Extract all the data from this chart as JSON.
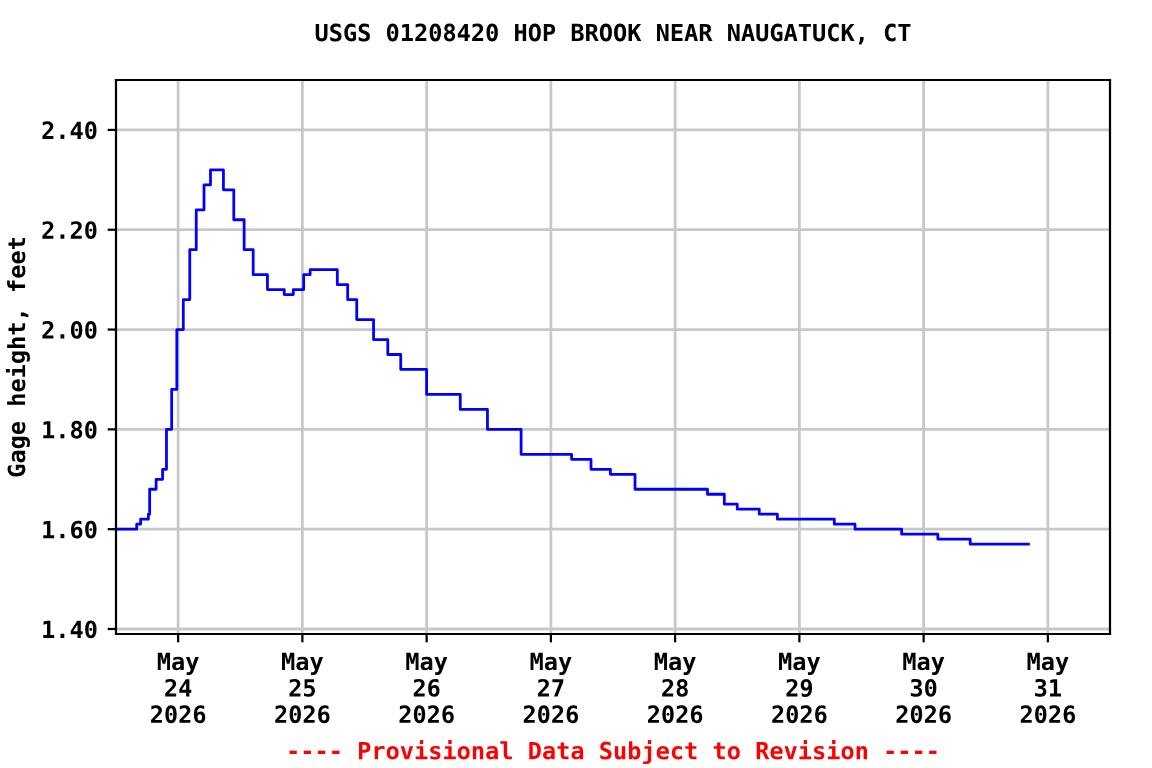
{
  "chart_data": {
    "type": "step",
    "title": "USGS 01208420 HOP BROOK NEAR NAUGATUCK, CT",
    "ylabel": "Gage height, feet",
    "annotations": [
      "---- Provisional Data Subject to Revision ----"
    ],
    "x": [
      "2026-05-23T12:00",
      "2026-05-23T15:15",
      "2026-05-23T16:00",
      "2026-05-23T16:45",
      "2026-05-23T18:15",
      "2026-05-23T18:30",
      "2026-05-23T19:45",
      "2026-05-23T21:00",
      "2026-05-23T21:45",
      "2026-05-23T22:45",
      "2026-05-23T23:45",
      "2026-05-24T01:00",
      "2026-05-24T02:15",
      "2026-05-24T03:30",
      "2026-05-24T05:00",
      "2026-05-24T06:15",
      "2026-05-24T07:30",
      "2026-05-24T08:45",
      "2026-05-24T10:45",
      "2026-05-24T12:45",
      "2026-05-24T14:30",
      "2026-05-24T17:15",
      "2026-05-24T19:45",
      "2026-05-24T20:30",
      "2026-05-24T22:15",
      "2026-05-25T00:15",
      "2026-05-25T01:30",
      "2026-05-25T04:15",
      "2026-05-25T06:45",
      "2026-05-25T08:45",
      "2026-05-25T10:30",
      "2026-05-25T13:45",
      "2026-05-25T16:30",
      "2026-05-25T19:00",
      "2026-05-26T00:00",
      "2026-05-26T06:30",
      "2026-05-26T11:45",
      "2026-05-26T18:15",
      "2026-05-27T04:00",
      "2026-05-27T07:45",
      "2026-05-27T11:30",
      "2026-05-27T16:15",
      "2026-05-28T03:45",
      "2026-05-28T06:15",
      "2026-05-28T09:30",
      "2026-05-28T12:00",
      "2026-05-28T16:15",
      "2026-05-28T19:45",
      "2026-05-29T06:15",
      "2026-05-29T06:45",
      "2026-05-29T10:45",
      "2026-05-29T19:00",
      "2026-05-29T19:45",
      "2026-05-30T02:15",
      "2026-05-30T02:45",
      "2026-05-30T08:45",
      "2026-05-30T09:00",
      "2026-05-30T20:15"
    ],
    "series": [
      {
        "color": "#0000ff",
        "values": [
          1.6,
          1.6,
          1.61,
          1.62,
          1.63,
          1.68,
          1.7,
          1.72,
          1.8,
          1.88,
          2.0,
          2.06,
          2.16,
          2.24,
          2.29,
          2.32,
          2.32,
          2.28,
          2.22,
          2.16,
          2.11,
          2.08,
          2.08,
          2.07,
          2.08,
          2.11,
          2.12,
          2.12,
          2.09,
          2.06,
          2.02,
          1.98,
          1.95,
          1.92,
          1.87,
          1.84,
          1.8,
          1.75,
          1.74,
          1.72,
          1.71,
          1.68,
          1.68,
          1.67,
          1.65,
          1.64,
          1.63,
          1.62,
          1.62,
          1.61,
          1.6,
          1.6,
          1.59,
          1.59,
          1.58,
          1.58,
          1.57,
          1.57
        ]
      }
    ],
    "xlim": [
      "2026-05-23T12:00",
      "2026-05-31T12:00"
    ],
    "xticks": [
      {
        "value": "2026-05-24",
        "label": "May\n24\n2026"
      },
      {
        "value": "2026-05-25",
        "label": "May\n25\n2026"
      },
      {
        "value": "2026-05-26",
        "label": "May\n26\n2026"
      },
      {
        "value": "2026-05-27",
        "label": "May\n27\n2026"
      },
      {
        "value": "2026-05-28",
        "label": "May\n28\n2026"
      },
      {
        "value": "2026-05-29",
        "label": "May\n29\n2026"
      },
      {
        "value": "2026-05-30",
        "label": "May\n30\n2026"
      },
      {
        "value": "2026-05-31",
        "label": "May\n31\n2026"
      }
    ],
    "ylim": [
      1.39,
      2.5
    ],
    "yticks": [
      {
        "value": 1.4,
        "label": "1.40"
      },
      {
        "value": 1.6,
        "label": "1.60"
      },
      {
        "value": 1.8,
        "label": "1.80"
      },
      {
        "value": 2.0,
        "label": "2.00"
      },
      {
        "value": 2.2,
        "label": "2.20"
      },
      {
        "value": 2.4,
        "label": "2.40"
      }
    ],
    "grid": true,
    "legend": false,
    "line_style": "solid"
  }
}
